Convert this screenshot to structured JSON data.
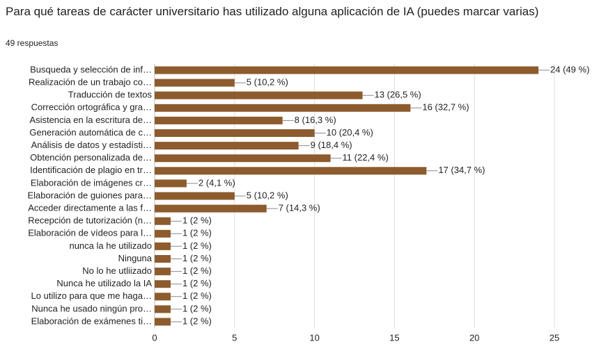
{
  "chart_data": {
    "type": "bar",
    "orientation": "horizontal",
    "title": "Para qué tareas de carácter universitario has utilizado alguna aplicación de IA (puedes marcar varias)",
    "subtitle": "49 respuestas",
    "categories": [
      "Busqueda y selección de inf…",
      "Realización de un trabajo co…",
      "Traducción de textos",
      "Corrección ortográfica y gra…",
      "Asistencia en la escritura de…",
      "Generación automática de c…",
      "Análisis de datos y estadísti…",
      "Obtención personalizada de…",
      "Identificación de plagio en tr…",
      "Elaboración de imágenes cr…",
      "Elaboración de guiones para…",
      "Acceder directamente a las f…",
      "Recepción de tutorización (n…",
      "Elaboración de vídeos para l…",
      "nunca la he utilizado",
      "Ninguna",
      "No lo he utliizado",
      "Nunca he utilizado la IA",
      "Lo utilizo para que me haga…",
      "Nunca he usado ningún pro…",
      "Elaboración de exámenes ti…"
    ],
    "values": [
      24,
      5,
      13,
      16,
      8,
      10,
      9,
      11,
      17,
      2,
      5,
      7,
      1,
      1,
      1,
      1,
      1,
      1,
      1,
      1,
      1
    ],
    "value_labels": [
      "24 (49 %)",
      "5 (10,2 %)",
      "13 (26,5 %)",
      "16 (32,7 %)",
      "8 (16,3 %)",
      "10 (20,4 %)",
      "9 (18,4 %)",
      "11 (22,4 %)",
      "17 (34,7 %)",
      "2 (4,1 %)",
      "5 (10,2 %)",
      "7 (14,3 %)",
      "1 (2 %)",
      "1 (2 %)",
      "1 (2 %)",
      "1 (2 %)",
      "1 (2 %)",
      "1 (2 %)",
      "1 (2 %)",
      "1 (2 %)",
      "1 (2 %)"
    ],
    "color": "#8d5b2d",
    "xlim": [
      0,
      25
    ],
    "xticks": [
      0,
      5,
      10,
      15,
      20,
      25
    ],
    "grid": true
  }
}
